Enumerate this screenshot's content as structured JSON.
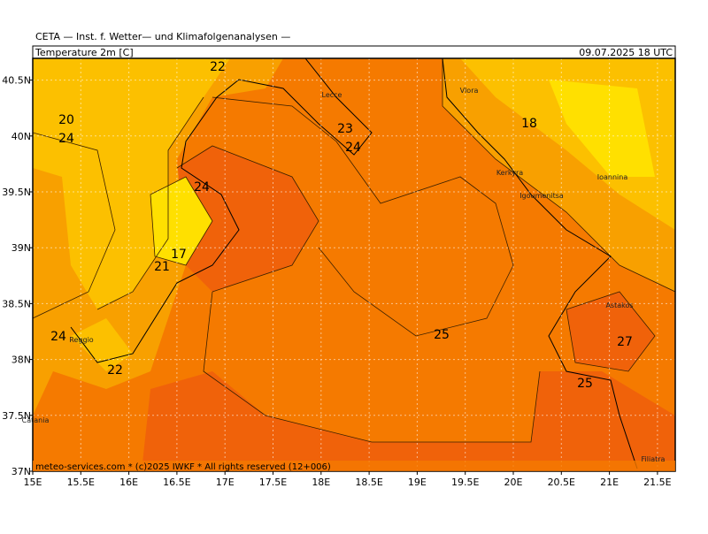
{
  "header": {
    "source": "CETA — Inst. f. Wetter— und Klimafolgenanalysen —",
    "variable": "Temperature 2m [C]",
    "valid_time": "09.07.2025 18 UTC"
  },
  "footer": "meteo-services.com * (c)2025 IWKF * All rights reserved (12+006)",
  "x_axis_labels": [
    "15E",
    "15.5E",
    "16E",
    "16.5E",
    "17E",
    "17.5E",
    "18E",
    "18.5E",
    "19E",
    "19.5E",
    "20E",
    "20.5E",
    "21E",
    "21.5E"
  ],
  "y_axis_labels": [
    "37N",
    "37.5N",
    "38N",
    "38.5N",
    "39N",
    "39.5N",
    "40N",
    "40.5N"
  ],
  "contour_labels": [
    22,
    20,
    24,
    23,
    24,
    18,
    24,
    17,
    21,
    24,
    22,
    25,
    27,
    25
  ],
  "places": [
    "Lecce",
    "Vlora",
    "Kerkyra",
    "Igoumenitsa",
    "Ioannina",
    "Astakos",
    "Reggio",
    "Catania",
    "Filiatra"
  ]
}
